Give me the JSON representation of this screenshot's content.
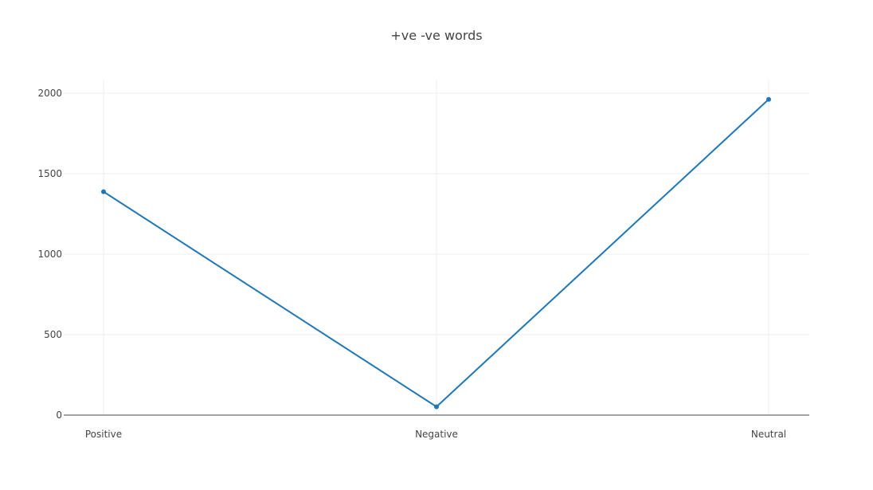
{
  "chart_data": {
    "type": "line",
    "title": "+ve -ve words",
    "categories": [
      "Positive",
      "Negative",
      "Neutral"
    ],
    "series": [
      {
        "values": [
          1388,
          52,
          1962
        ]
      }
    ],
    "yticks": [
      "0",
      "500",
      "1000",
      "1500",
      "2000"
    ],
    "ylim": [
      0,
      2000
    ],
    "grid": true,
    "legend": "none",
    "colors": {
      "series": "#1f77b4",
      "grid": "#eeeeee",
      "axis": "#444444",
      "text": "#444444"
    }
  }
}
